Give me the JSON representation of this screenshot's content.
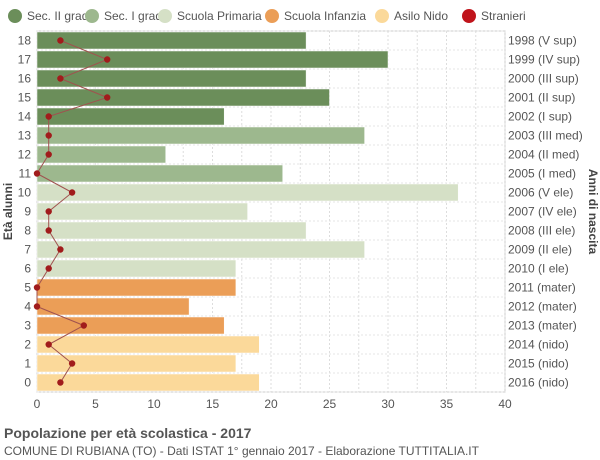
{
  "legend": [
    {
      "label": "Sec. II grado",
      "color": "#6b8e5a"
    },
    {
      "label": "Sec. I grado",
      "color": "#9db88e"
    },
    {
      "label": "Scuola Primaria",
      "color": "#d5e0c6"
    },
    {
      "label": "Scuola Infanzia",
      "color": "#eb9e57"
    },
    {
      "label": "Asilo Nido",
      "color": "#fbd99a"
    },
    {
      "label": "Stranieri",
      "color": "#c0141b"
    }
  ],
  "footer": {
    "title": "Popolazione per età scolastica - 2017",
    "subtitle": "COMUNE DI RUBIANA (TO) - Dati ISTAT 1° gennaio 2017 - Elaborazione TUTTITALIA.IT"
  },
  "chart_data": {
    "type": "bar",
    "orientation": "horizontal",
    "ylabel": "Età alunni",
    "ylabel_right": "Anni di nascita",
    "xlim": [
      0,
      40
    ],
    "xticks": [
      0,
      5,
      10,
      15,
      20,
      25,
      30,
      35,
      40
    ],
    "grid": true,
    "categories": [
      "18",
      "17",
      "16",
      "15",
      "14",
      "13",
      "12",
      "11",
      "10",
      "9",
      "8",
      "7",
      "6",
      "5",
      "4",
      "3",
      "2",
      "1",
      "0"
    ],
    "birth_years": [
      "1998 (V sup)",
      "1999 (IV sup)",
      "2000 (III sup)",
      "2001 (II sup)",
      "2002 (I sup)",
      "2003 (III med)",
      "2004 (II med)",
      "2005 (I med)",
      "2006 (V ele)",
      "2007 (IV ele)",
      "2008 (III ele)",
      "2009 (II ele)",
      "2010 (I ele)",
      "2011 (mater)",
      "2012 (mater)",
      "2013 (mater)",
      "2014 (nido)",
      "2015 (nido)",
      "2016 (nido)"
    ],
    "values": [
      23,
      30,
      23,
      25,
      16,
      28,
      11,
      21,
      36,
      18,
      23,
      28,
      17,
      17,
      13,
      16,
      19,
      17,
      19
    ],
    "groups": [
      "Sec. II grado",
      "Sec. II grado",
      "Sec. II grado",
      "Sec. II grado",
      "Sec. II grado",
      "Sec. I grado",
      "Sec. I grado",
      "Sec. I grado",
      "Scuola Primaria",
      "Scuola Primaria",
      "Scuola Primaria",
      "Scuola Primaria",
      "Scuola Primaria",
      "Scuola Infanzia",
      "Scuola Infanzia",
      "Scuola Infanzia",
      "Asilo Nido",
      "Asilo Nido",
      "Asilo Nido"
    ],
    "series": [
      {
        "name": "Stranieri",
        "type": "line",
        "color": "#a11c1c",
        "values": [
          2,
          6,
          2,
          6,
          1,
          1,
          1,
          0,
          3,
          1,
          1,
          2,
          1,
          0,
          0,
          4,
          1,
          3,
          2
        ]
      }
    ]
  }
}
